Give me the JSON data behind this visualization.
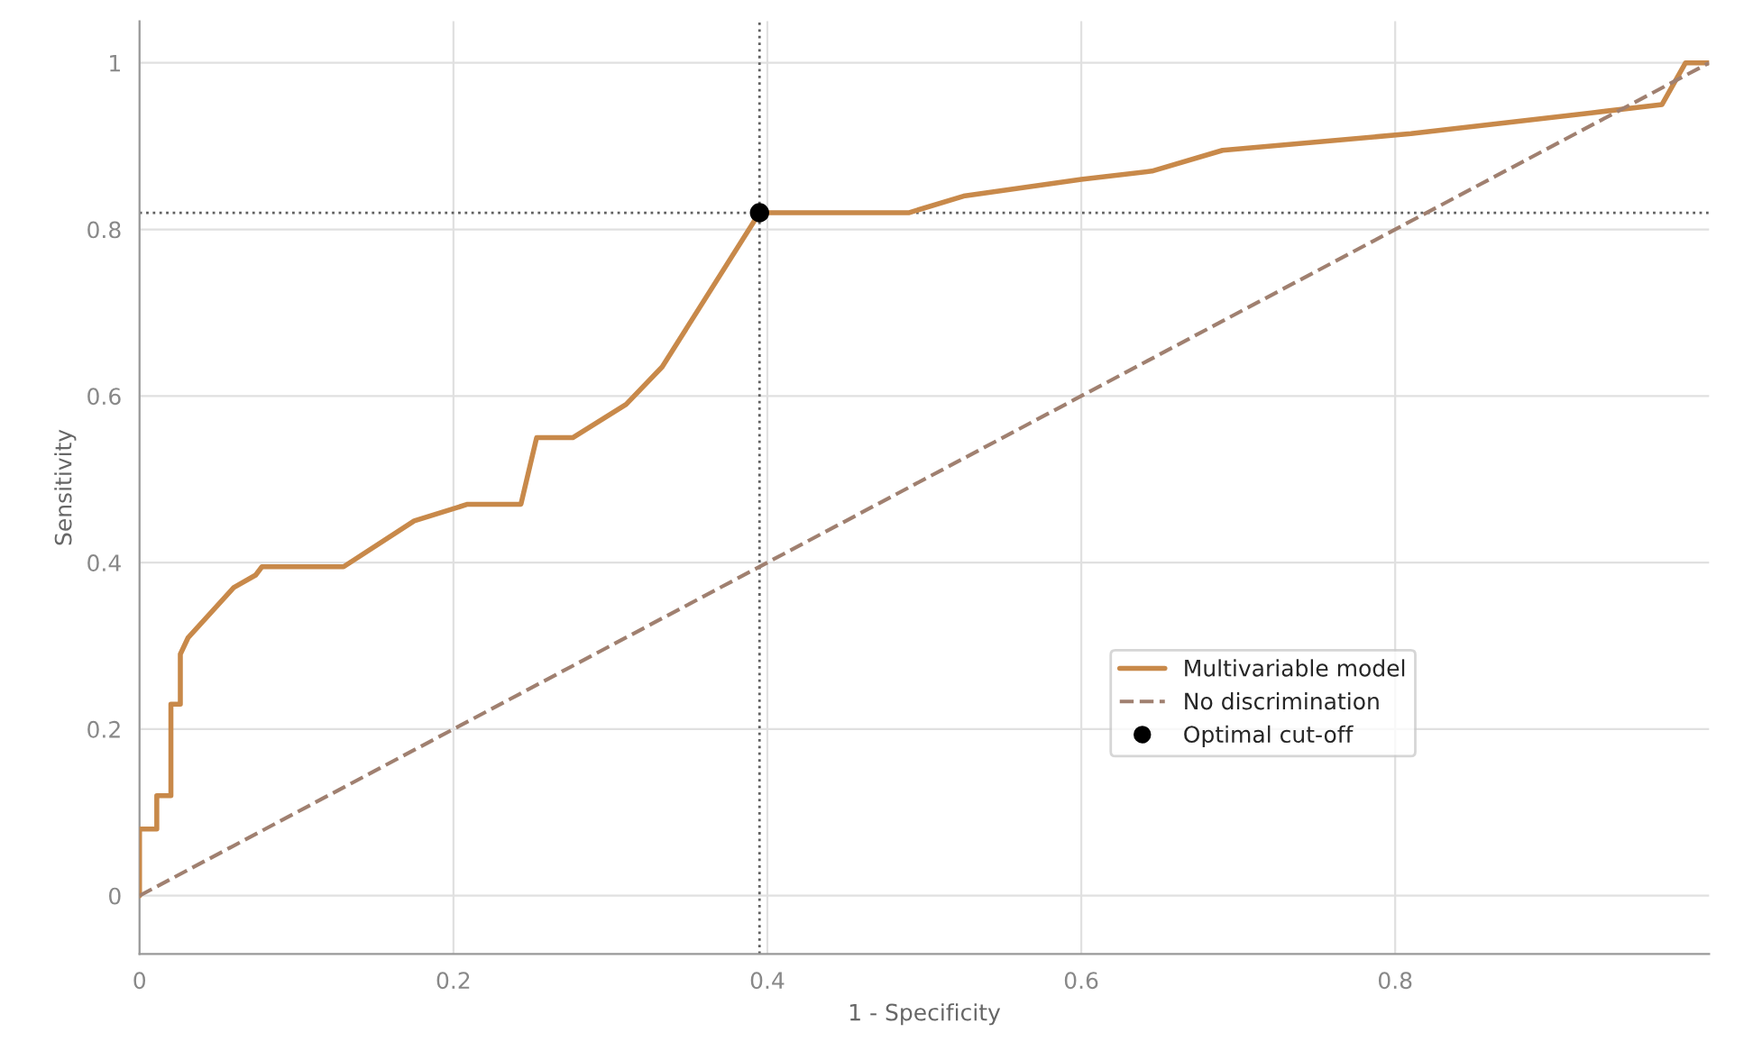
{
  "chart_data": {
    "type": "line",
    "xlabel": "1 - Specificity",
    "ylabel": "Sensitivity",
    "xlim": [
      0,
      1
    ],
    "ylim": [
      -0.07,
      1.05
    ],
    "xticks": [
      0,
      0.2,
      0.4,
      0.6,
      0.8
    ],
    "yticks": [
      0,
      0.2,
      0.4,
      0.6,
      0.8,
      1
    ],
    "grid": true,
    "legend": "bottom right",
    "series": [
      {
        "name": "Multivariable model",
        "color": "#c8894a",
        "line_style": "solid",
        "x": [
          0,
          0,
          0.011,
          0.011,
          0.02,
          0.02,
          0.026,
          0.026,
          0.031,
          0.048,
          0.06,
          0.074,
          0.078,
          0.13,
          0.175,
          0.209,
          0.243,
          0.253,
          0.276,
          0.31,
          0.333,
          0.395,
          0.49,
          0.525,
          0.6,
          0.645,
          0.69,
          0.81,
          0.925,
          0.97,
          0.985,
          1
        ],
        "values": [
          0,
          0.08,
          0.08,
          0.12,
          0.12,
          0.23,
          0.23,
          0.29,
          0.31,
          0.345,
          0.37,
          0.385,
          0.395,
          0.395,
          0.45,
          0.47,
          0.47,
          0.55,
          0.55,
          0.59,
          0.635,
          0.82,
          0.82,
          0.84,
          0.86,
          0.87,
          0.895,
          0.915,
          0.94,
          0.95,
          1,
          1
        ]
      },
      {
        "name": "No discrimination",
        "type": "line",
        "color": "#a08070",
        "line_style": "dashed",
        "x": [
          0,
          1
        ],
        "values": [
          0,
          1
        ]
      },
      {
        "name": "Optimal cut-off",
        "type": "scatter",
        "color": "#000000",
        "marker": "circle",
        "x": [
          0.395
        ],
        "values": [
          0.82
        ]
      }
    ],
    "ref_lines": [
      {
        "axis": "y",
        "value": 0.82,
        "color": "#606060",
        "line_style": "dotted"
      },
      {
        "axis": "x",
        "value": 0.395,
        "color": "#606060",
        "line_style": "dotted"
      }
    ]
  }
}
